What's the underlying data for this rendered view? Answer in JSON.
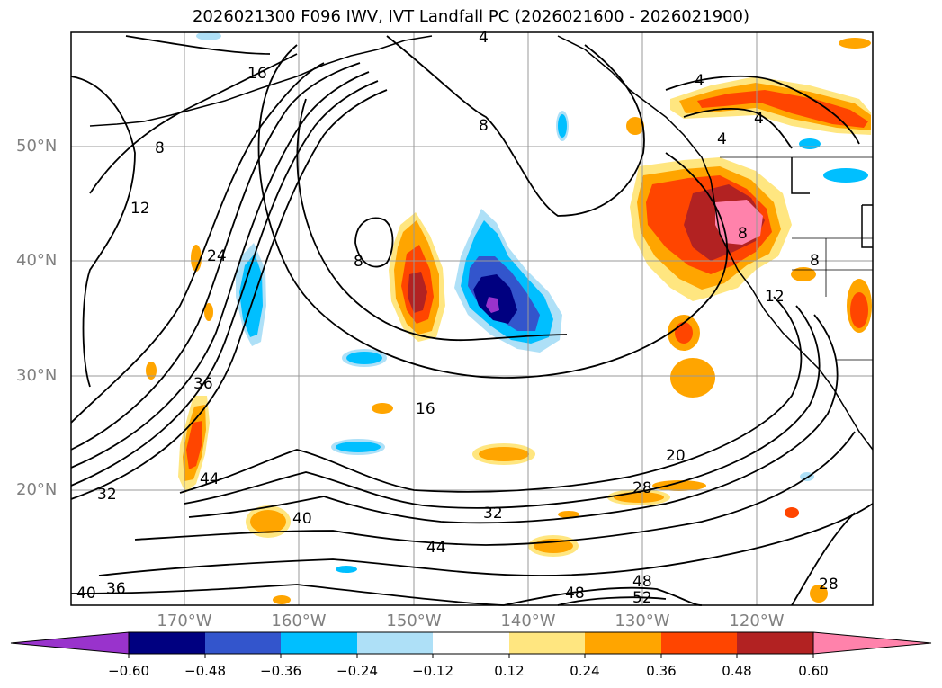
{
  "title": "2026021300 F096 IWV, IVT Landfall PC (2026021600 - 2026021900)",
  "lat_labels": [
    "50°N",
    "40°N",
    "30°N",
    "20°N"
  ],
  "lon_labels": [
    "170°W",
    "160°W",
    "150°W",
    "140°W",
    "130°W",
    "120°W"
  ],
  "colorbar": {
    "tick_labels": [
      "−0.60",
      "−0.48",
      "−0.36",
      "−0.24",
      "−0.12",
      "0.12",
      "0.24",
      "0.36",
      "0.48",
      "0.60"
    ],
    "colors": [
      "#9933cc",
      "#000080",
      "#3355cc",
      "#00bfff",
      "#aee0f7",
      "#ffffff",
      "#ffe680",
      "#ffa500",
      "#ff4500",
      "#b22222",
      "#ff82ab"
    ]
  },
  "contour_labels": [
    "4",
    "4",
    "4",
    "4",
    "8",
    "8",
    "8",
    "8",
    "8",
    "12",
    "12",
    "16",
    "16",
    "20",
    "24",
    "28",
    "32",
    "32",
    "36",
    "36",
    "40",
    "40",
    "44",
    "44",
    "48",
    "48",
    "52",
    "28"
  ],
  "colors": {
    "grid": "#999999",
    "axis_label": "#808080",
    "contour": "#000000"
  }
}
